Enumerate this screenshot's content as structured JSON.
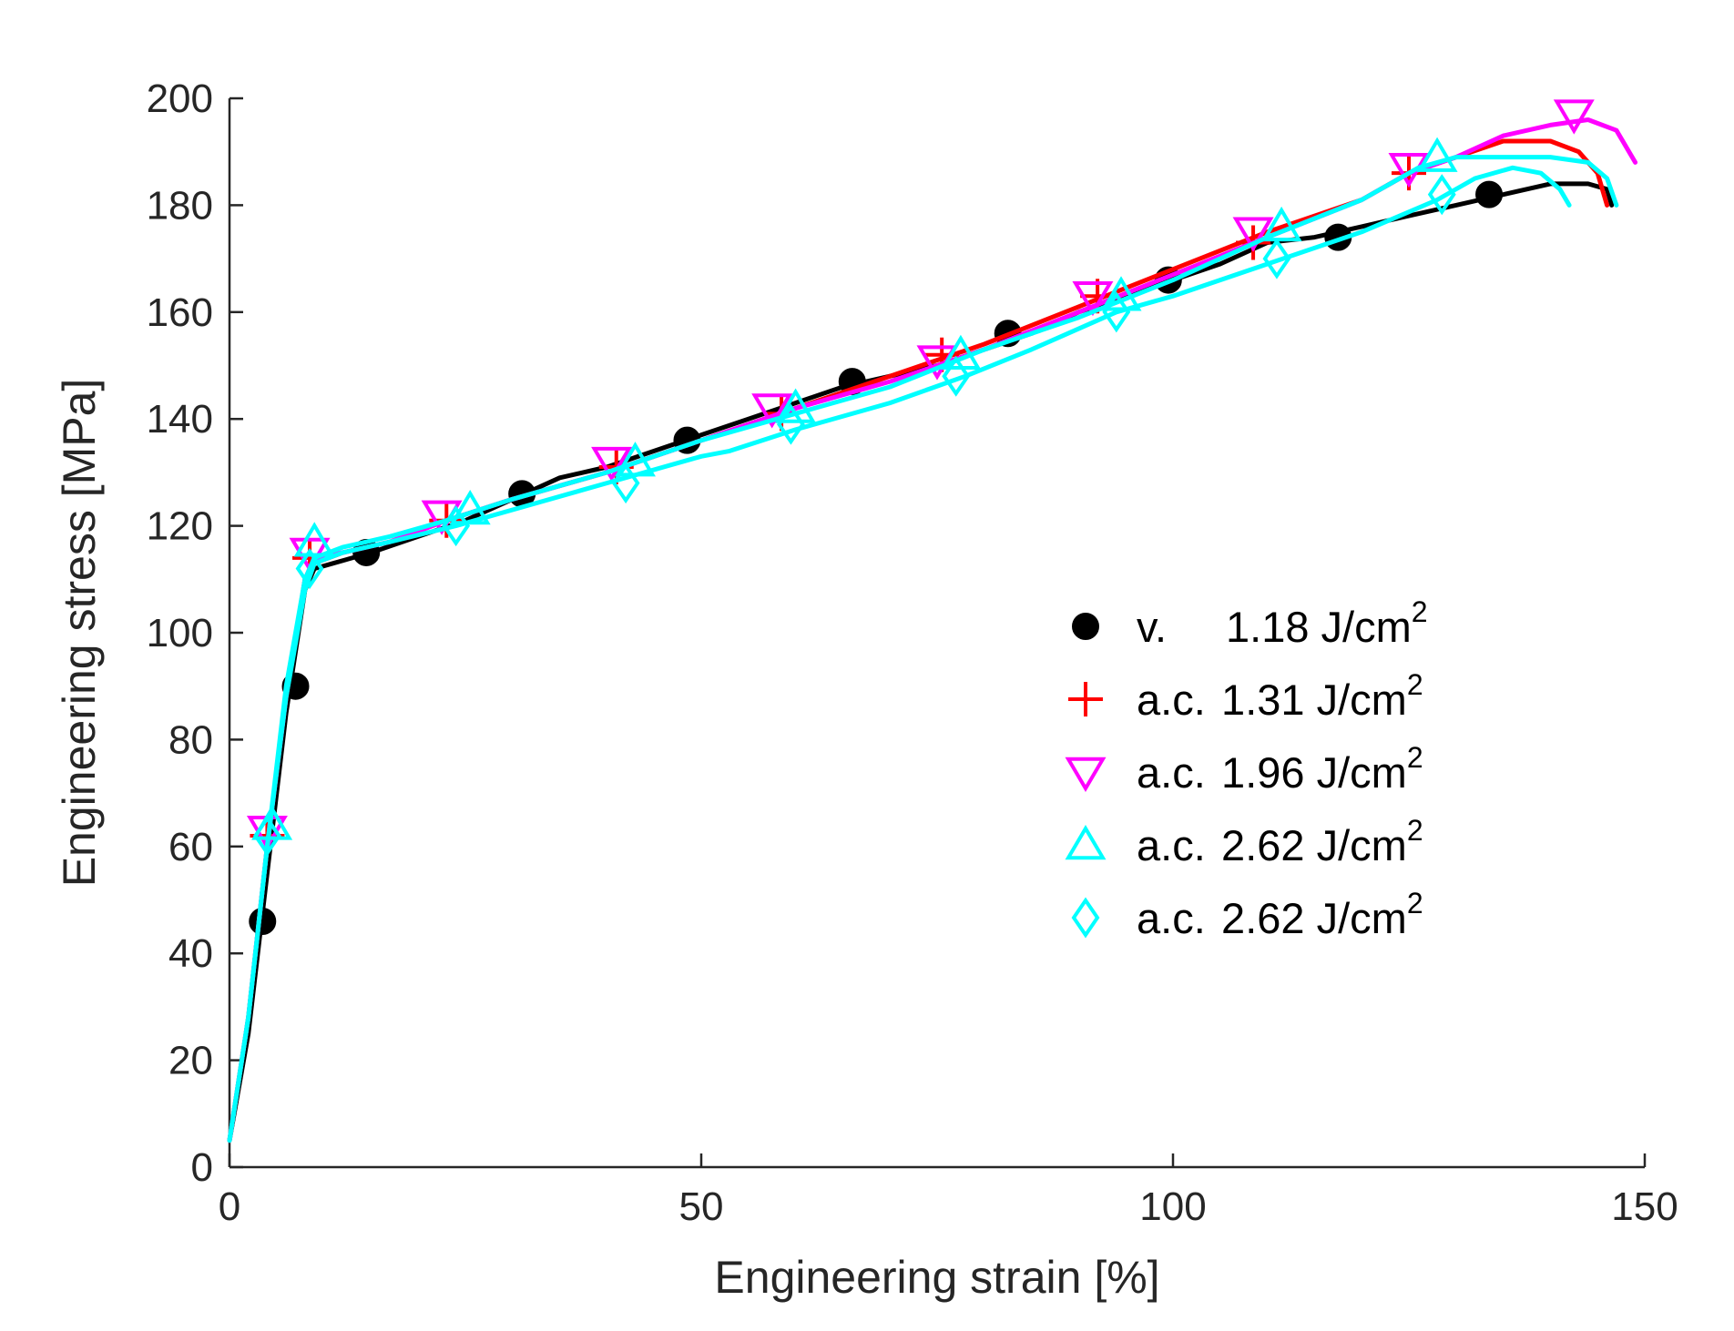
{
  "chart_data": {
    "type": "line",
    "xlabel": "Engineering strain [%]",
    "ylabel": "Engineering stress [MPa]",
    "xlim": [
      0,
      150
    ],
    "ylim": [
      0,
      200
    ],
    "xticks": [
      0,
      50,
      100,
      150
    ],
    "yticks": [
      0,
      20,
      40,
      60,
      80,
      100,
      120,
      140,
      160,
      180,
      200
    ],
    "grid": false,
    "legend_position": "center-right",
    "series": [
      {
        "name": "v.",
        "label_value": "1.18 J/cm",
        "label_sup": "2",
        "color": "#000000",
        "marker": "circle",
        "curve": [
          [
            0,
            5
          ],
          [
            2,
            25
          ],
          [
            4,
            55
          ],
          [
            6,
            85
          ],
          [
            8,
            108
          ],
          [
            9,
            112
          ],
          [
            11,
            113
          ],
          [
            15,
            115
          ],
          [
            20,
            118
          ],
          [
            25,
            121
          ],
          [
            30,
            125
          ],
          [
            35,
            129
          ],
          [
            40,
            131
          ],
          [
            45,
            134
          ],
          [
            50,
            137
          ],
          [
            55,
            140
          ],
          [
            60,
            143
          ],
          [
            65,
            146
          ],
          [
            70,
            148
          ],
          [
            75,
            150
          ],
          [
            80,
            153
          ],
          [
            85,
            156
          ],
          [
            90,
            160
          ],
          [
            95,
            163
          ],
          [
            100,
            166
          ],
          [
            105,
            169
          ],
          [
            110,
            173
          ],
          [
            115,
            174
          ],
          [
            120,
            176
          ],
          [
            125,
            178
          ],
          [
            130,
            180
          ],
          [
            135,
            182
          ],
          [
            140,
            184
          ],
          [
            144,
            184
          ],
          [
            146,
            183
          ],
          [
            146.5,
            180
          ]
        ],
        "markers": [
          [
            3.5,
            46
          ],
          [
            7,
            90
          ],
          [
            14.5,
            115
          ],
          [
            31,
            126
          ],
          [
            48.5,
            136
          ],
          [
            66,
            147
          ],
          [
            82.5,
            156
          ],
          [
            99.5,
            166
          ],
          [
            117.5,
            174
          ],
          [
            133.5,
            182
          ]
        ]
      },
      {
        "name": "a.c.",
        "label_value": "1.31 J/cm",
        "label_sup": "2",
        "color": "#ff0000",
        "marker": "plus",
        "curve": [
          [
            0,
            5
          ],
          [
            2,
            28
          ],
          [
            4,
            60
          ],
          [
            6,
            88
          ],
          [
            8,
            110
          ],
          [
            9,
            113
          ],
          [
            12,
            115
          ],
          [
            17,
            117
          ],
          [
            23,
            121
          ],
          [
            30,
            125
          ],
          [
            40,
            130
          ],
          [
            50,
            136
          ],
          [
            60,
            142
          ],
          [
            70,
            148
          ],
          [
            80,
            154
          ],
          [
            90,
            161
          ],
          [
            100,
            168
          ],
          [
            110,
            175
          ],
          [
            120,
            181
          ],
          [
            125,
            186
          ],
          [
            130,
            189
          ],
          [
            135,
            192
          ],
          [
            140,
            192
          ],
          [
            143,
            190
          ],
          [
            145,
            186
          ],
          [
            146,
            180
          ]
        ],
        "markers": [
          [
            4,
            62
          ],
          [
            8.5,
            114
          ],
          [
            23,
            121
          ],
          [
            41,
            131
          ],
          [
            58.5,
            141
          ],
          [
            75.5,
            152
          ],
          [
            92,
            163
          ],
          [
            108.5,
            173
          ],
          [
            125,
            186
          ]
        ]
      },
      {
        "name": "a.c.",
        "label_value": "1.96 J/cm",
        "label_sup": "2",
        "color": "#ff00ff",
        "marker": "triangle-down",
        "curve": [
          [
            0,
            5
          ],
          [
            2,
            28
          ],
          [
            4,
            60
          ],
          [
            6,
            88
          ],
          [
            8,
            110
          ],
          [
            9,
            114
          ],
          [
            12,
            115
          ],
          [
            17,
            117
          ],
          [
            23,
            121
          ],
          [
            30,
            125
          ],
          [
            40,
            130
          ],
          [
            50,
            136
          ],
          [
            60,
            142
          ],
          [
            70,
            147
          ],
          [
            80,
            153
          ],
          [
            90,
            160
          ],
          [
            100,
            167
          ],
          [
            110,
            174
          ],
          [
            120,
            181
          ],
          [
            125,
            186
          ],
          [
            130,
            189
          ],
          [
            135,
            193
          ],
          [
            140,
            195
          ],
          [
            144,
            196
          ],
          [
            147,
            194
          ],
          [
            149,
            188
          ]
        ],
        "markers": [
          [
            4,
            63
          ],
          [
            8.5,
            115
          ],
          [
            22.5,
            122
          ],
          [
            40.5,
            132
          ],
          [
            57.5,
            142
          ],
          [
            75,
            151
          ],
          [
            91.5,
            163
          ],
          [
            108.5,
            175
          ],
          [
            125,
            187
          ],
          [
            142.5,
            197
          ]
        ]
      },
      {
        "name": "a.c.",
        "label_value": "2.62 J/cm",
        "label_sup": "2",
        "color": "#00ffff",
        "marker": "triangle-up",
        "curve": [
          [
            0,
            5
          ],
          [
            2,
            28
          ],
          [
            4,
            60
          ],
          [
            6,
            90
          ],
          [
            8,
            110
          ],
          [
            9,
            114
          ],
          [
            12,
            116
          ],
          [
            17,
            118
          ],
          [
            23,
            121
          ],
          [
            30,
            125
          ],
          [
            40,
            130
          ],
          [
            50,
            136
          ],
          [
            60,
            141
          ],
          [
            70,
            146
          ],
          [
            80,
            153
          ],
          [
            90,
            159
          ],
          [
            100,
            166
          ],
          [
            110,
            174
          ],
          [
            120,
            181
          ],
          [
            126,
            187
          ],
          [
            130,
            189
          ],
          [
            135,
            189
          ],
          [
            140,
            189
          ],
          [
            144,
            188
          ],
          [
            146,
            185
          ],
          [
            147,
            180
          ]
        ],
        "markers": [
          [
            4.5,
            64
          ],
          [
            9,
            117
          ],
          [
            25.5,
            123
          ],
          [
            43,
            132
          ],
          [
            60,
            142
          ],
          [
            77.5,
            152
          ],
          [
            94.5,
            163
          ],
          [
            111.5,
            176
          ],
          [
            128,
            189
          ]
        ]
      },
      {
        "name": "a.c.",
        "label_value": "2.62 J/cm",
        "label_sup": "2",
        "color": "#00ffff",
        "marker": "diamond",
        "curve": [
          [
            0,
            5
          ],
          [
            2,
            28
          ],
          [
            4,
            60
          ],
          [
            6,
            88
          ],
          [
            8,
            108
          ],
          [
            9,
            113
          ],
          [
            12,
            115
          ],
          [
            17,
            117
          ],
          [
            24,
            120
          ],
          [
            30,
            123
          ],
          [
            40,
            128
          ],
          [
            50,
            133
          ],
          [
            53,
            134
          ],
          [
            60,
            138
          ],
          [
            70,
            143
          ],
          [
            78,
            148
          ],
          [
            85,
            153
          ],
          [
            94,
            160
          ],
          [
            100,
            163
          ],
          [
            110,
            169
          ],
          [
            120,
            175
          ],
          [
            128,
            181
          ],
          [
            132,
            185
          ],
          [
            136,
            187
          ],
          [
            139,
            186
          ],
          [
            141,
            183
          ],
          [
            142,
            180
          ]
        ],
        "markers": [
          [
            4,
            62
          ],
          [
            8.5,
            112
          ],
          [
            24,
            120
          ],
          [
            42,
            128
          ],
          [
            59.5,
            139
          ],
          [
            77,
            148
          ],
          [
            94,
            160
          ],
          [
            111,
            170
          ],
          [
            128.5,
            182
          ]
        ]
      }
    ]
  }
}
